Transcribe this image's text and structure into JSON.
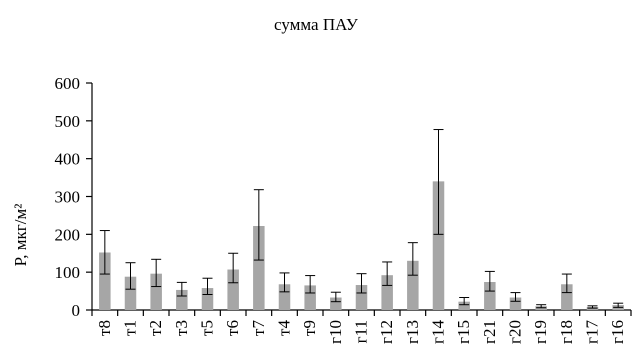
{
  "chart_data": {
    "type": "bar",
    "title": "сумма ПАУ",
    "ylabel": "P, мкг/м²",
    "xlabel": "",
    "ylim": [
      0,
      600
    ],
    "yticks": [
      0,
      100,
      200,
      300,
      400,
      500,
      600
    ],
    "grid": false,
    "legend": "none",
    "bar_color": "#a6a6a6",
    "categories": [
      "т8",
      "т1",
      "т2",
      "т3",
      "т5",
      "т6",
      "т7",
      "т4",
      "т9",
      "г10",
      "г11",
      "г12",
      "г13",
      "г14",
      "г15",
      "г21",
      "г20",
      "г19",
      "г18",
      "г17",
      "г16"
    ],
    "values": [
      152,
      88,
      96,
      53,
      58,
      107,
      222,
      68,
      65,
      33,
      66,
      92,
      130,
      340,
      22,
      74,
      33,
      10,
      68,
      8,
      13
    ],
    "error_low": [
      95,
      55,
      62,
      37,
      41,
      72,
      132,
      48,
      45,
      22,
      45,
      65,
      92,
      200,
      14,
      50,
      23,
      6,
      46,
      5,
      7
    ],
    "error_high": [
      210,
      125,
      134,
      73,
      84,
      150,
      318,
      98,
      91,
      47,
      96,
      127,
      178,
      477,
      33,
      102,
      46,
      14,
      95,
      11,
      18
    ]
  }
}
